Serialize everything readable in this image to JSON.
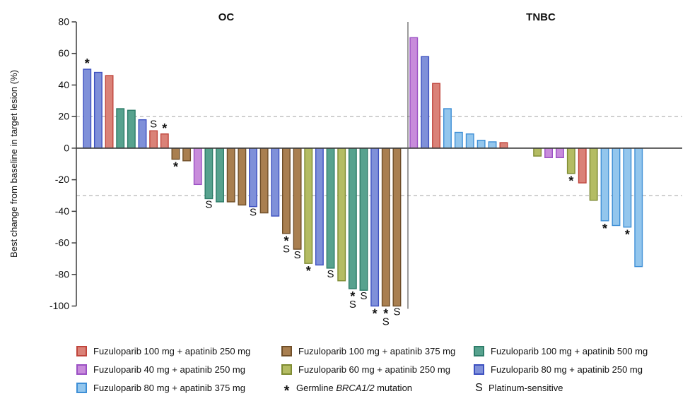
{
  "chart_data": {
    "type": "bar",
    "subtype": "waterfall",
    "ylabel": "Best change from baseline in target lesion (%)",
    "ylim": [
      -100,
      80
    ],
    "yticks": [
      80,
      60,
      40,
      20,
      0,
      -20,
      -40,
      -60,
      -80,
      -100
    ],
    "reference_lines": [
      20,
      -30
    ],
    "grid": false,
    "legend_position": "bottom",
    "colors": {
      "fz100_ap250": {
        "fill": "#DA8278",
        "stroke": "#C0453C",
        "label": "Fuzuloparib 100 mg + apatinib 250 mg"
      },
      "fz100_ap375": {
        "fill": "#A97F50",
        "stroke": "#6F4E28",
        "label": "Fuzuloparib 100 mg + apatinib 375 mg"
      },
      "fz100_ap500": {
        "fill": "#57A28E",
        "stroke": "#2E7D69",
        "label": "Fuzuloparib 100 mg + apatinib 500 mg"
      },
      "fz40_ap250": {
        "fill": "#C88CDB",
        "stroke": "#9B51C4",
        "label": "Fuzuloparib 40 mg + apatinib 250 mg"
      },
      "fz60_ap250": {
        "fill": "#B4BC63",
        "stroke": "#7E8B32",
        "label": "Fuzuloparib 60 mg + apatinib 250 mg"
      },
      "fz80_ap250": {
        "fill": "#7F90D9",
        "stroke": "#3D50C0",
        "label": "Fuzuloparib 80 mg + apatinib 250 mg"
      },
      "fz80_ap375": {
        "fill": "#93C6ED",
        "stroke": "#3E8FD6",
        "label": "Fuzuloparib 80 mg + apatinib 375 mg"
      }
    },
    "panels": [
      {
        "title": "OC",
        "bars": [
          {
            "v": 50,
            "c": "fz80_ap250",
            "m": [
              "*"
            ]
          },
          {
            "v": 48,
            "c": "fz80_ap250",
            "m": []
          },
          {
            "v": 46,
            "c": "fz100_ap250",
            "m": []
          },
          {
            "v": 25,
            "c": "fz100_ap500",
            "m": []
          },
          {
            "v": 24,
            "c": "fz100_ap500",
            "m": []
          },
          {
            "v": 18,
            "c": "fz80_ap250",
            "m": []
          },
          {
            "v": 11,
            "c": "fz100_ap250",
            "m": [
              "S"
            ]
          },
          {
            "v": 9,
            "c": "fz100_ap250",
            "m": [
              "*"
            ]
          },
          {
            "v": -7,
            "c": "fz100_ap375",
            "m": [
              "*"
            ]
          },
          {
            "v": -8,
            "c": "fz100_ap375",
            "m": []
          },
          {
            "v": -23,
            "c": "fz40_ap250",
            "m": []
          },
          {
            "v": -32,
            "c": "fz100_ap500",
            "m": [
              "S"
            ]
          },
          {
            "v": -34,
            "c": "fz100_ap500",
            "m": []
          },
          {
            "v": -34,
            "c": "fz100_ap375",
            "m": []
          },
          {
            "v": -36,
            "c": "fz100_ap375",
            "m": []
          },
          {
            "v": -37,
            "c": "fz80_ap250",
            "m": [
              "S"
            ]
          },
          {
            "v": -41,
            "c": "fz100_ap375",
            "m": []
          },
          {
            "v": -43,
            "c": "fz80_ap250",
            "m": []
          },
          {
            "v": -54,
            "c": "fz100_ap375",
            "m": [
              "*",
              "S"
            ]
          },
          {
            "v": -64,
            "c": "fz100_ap375",
            "m": [
              "S"
            ]
          },
          {
            "v": -73,
            "c": "fz60_ap250",
            "m": [
              "*"
            ]
          },
          {
            "v": -74,
            "c": "fz80_ap250",
            "m": []
          },
          {
            "v": -76,
            "c": "fz100_ap500",
            "m": [
              "S"
            ]
          },
          {
            "v": -84,
            "c": "fz60_ap250",
            "m": []
          },
          {
            "v": -89,
            "c": "fz100_ap500",
            "m": [
              "*",
              "S"
            ]
          },
          {
            "v": -90,
            "c": "fz100_ap500",
            "m": [
              "S"
            ]
          },
          {
            "v": -100,
            "c": "fz80_ap250",
            "m": [
              "*"
            ]
          },
          {
            "v": -100,
            "c": "fz100_ap375",
            "m": [
              "*",
              "S"
            ]
          },
          {
            "v": -100,
            "c": "fz100_ap375",
            "m": [
              "S"
            ]
          }
        ]
      },
      {
        "title": "TNBC",
        "bars": [
          {
            "v": 70,
            "c": "fz40_ap250",
            "m": []
          },
          {
            "v": 58,
            "c": "fz80_ap250",
            "m": []
          },
          {
            "v": 41,
            "c": "fz100_ap250",
            "m": []
          },
          {
            "v": 25,
            "c": "fz80_ap375",
            "m": []
          },
          {
            "v": 10,
            "c": "fz80_ap375",
            "m": []
          },
          {
            "v": 9,
            "c": "fz80_ap375",
            "m": []
          },
          {
            "v": 5,
            "c": "fz80_ap375",
            "m": []
          },
          {
            "v": 4,
            "c": "fz80_ap375",
            "m": []
          },
          {
            "v": 3.5,
            "c": "fz100_ap250",
            "m": []
          },
          {
            "v": 0,
            "c": "fz80_ap375",
            "m": []
          },
          {
            "v": 0,
            "c": "fz80_ap375",
            "m": []
          },
          {
            "v": -5,
            "c": "fz60_ap250",
            "m": []
          },
          {
            "v": -6,
            "c": "fz40_ap250",
            "m": []
          },
          {
            "v": -6,
            "c": "fz40_ap250",
            "m": []
          },
          {
            "v": -16,
            "c": "fz60_ap250",
            "m": [
              "*"
            ]
          },
          {
            "v": -22,
            "c": "fz100_ap250",
            "m": []
          },
          {
            "v": -33,
            "c": "fz60_ap250",
            "m": []
          },
          {
            "v": -46,
            "c": "fz80_ap375",
            "m": [
              "*"
            ]
          },
          {
            "v": -49,
            "c": "fz80_ap375",
            "m": []
          },
          {
            "v": -50,
            "c": "fz80_ap375",
            "m": [
              "*"
            ]
          },
          {
            "v": -75,
            "c": "fz80_ap375",
            "m": []
          }
        ]
      }
    ],
    "legend_cells": [
      {
        "kind": "color",
        "key": "fz100_ap250"
      },
      {
        "kind": "color",
        "key": "fz100_ap375"
      },
      {
        "kind": "color",
        "key": "fz100_ap500"
      },
      {
        "kind": "color",
        "key": "fz40_ap250"
      },
      {
        "kind": "color",
        "key": "fz60_ap250"
      },
      {
        "kind": "color",
        "key": "fz80_ap250"
      },
      {
        "kind": "color",
        "key": "fz80_ap375"
      },
      {
        "kind": "symbol",
        "symbol": "*",
        "prefix": "Germline ",
        "italic": "BRCA1/2",
        "suffix": " mutation"
      },
      {
        "kind": "symbol",
        "symbol": "S",
        "prefix": "Platinum-sensitive",
        "italic": "",
        "suffix": ""
      }
    ],
    "annotation_symbols": {
      "brca_mutation": "*",
      "platinum_sensitive": "S"
    }
  }
}
